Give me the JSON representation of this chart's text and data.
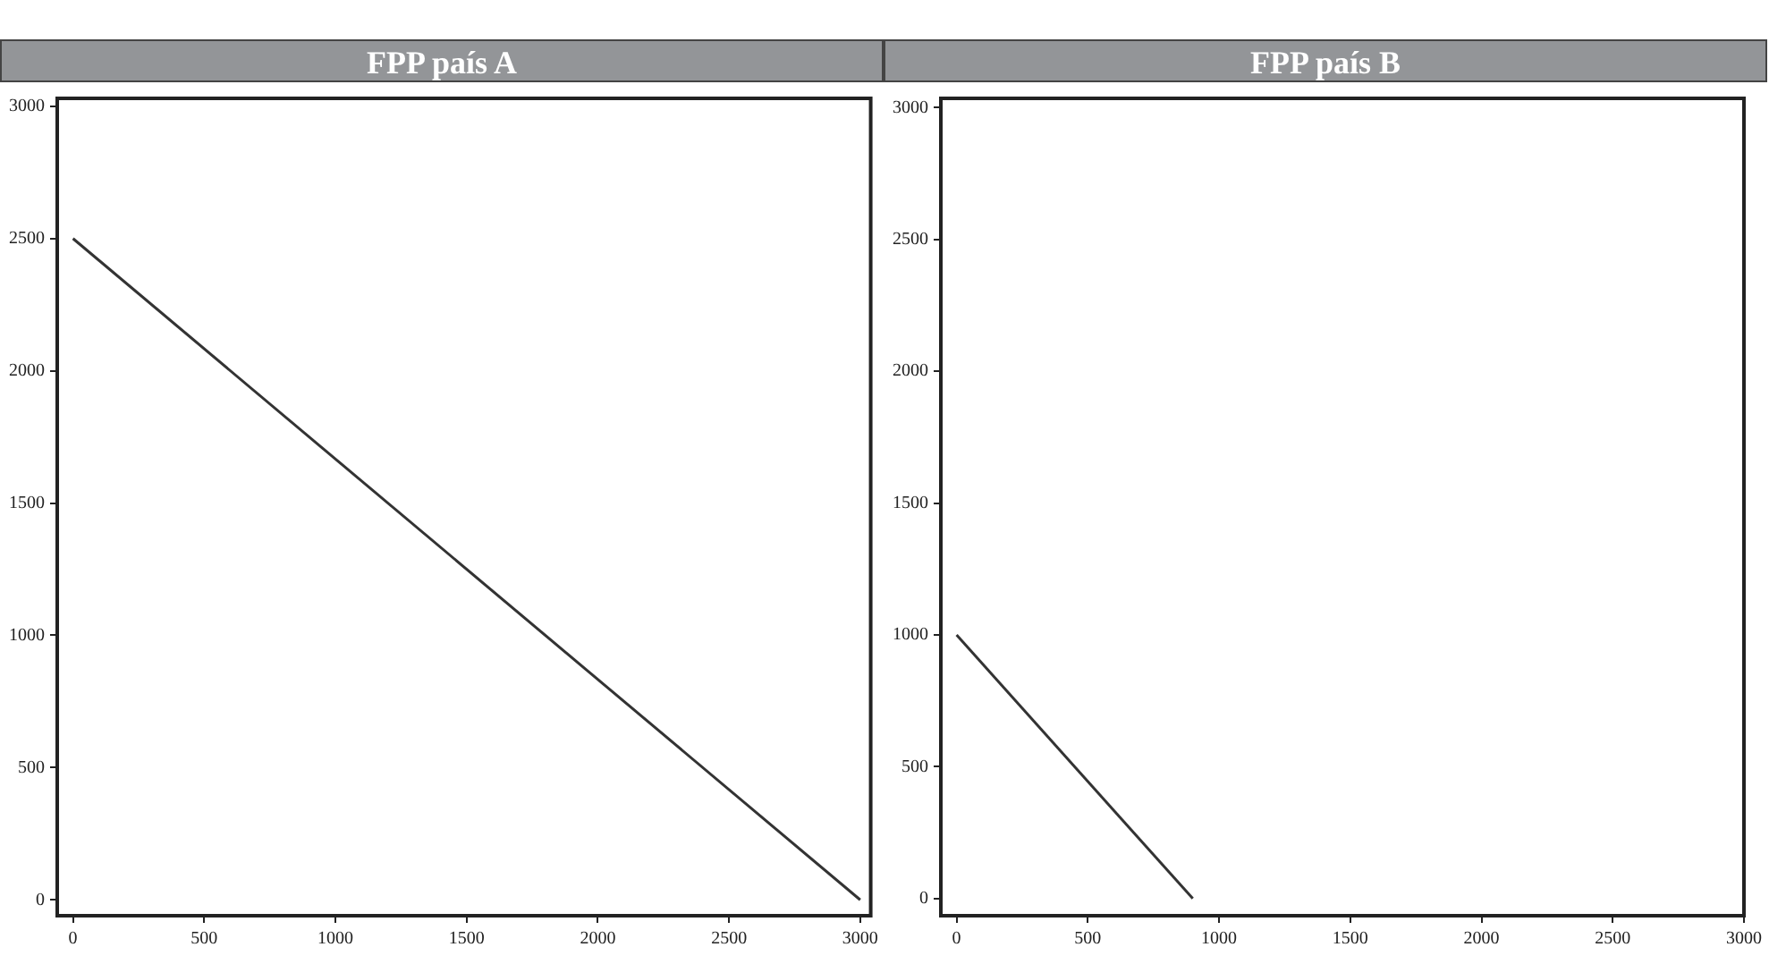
{
  "chart_data": [
    {
      "type": "line",
      "title": "FPP país A",
      "x": [
        0,
        3000
      ],
      "series": [
        {
          "color": "#333333",
          "values": [
            2500,
            0
          ]
        }
      ],
      "xlim": [
        -60,
        3040
      ],
      "ylim": [
        -60,
        3030
      ],
      "xticks": [
        0,
        500,
        1000,
        1500,
        2000,
        2500,
        3000
      ],
      "yticks": [
        0,
        500,
        1000,
        1500,
        2000,
        2500,
        3000
      ],
      "grid": false,
      "legend": false,
      "marker": "none",
      "line_style": "solid"
    },
    {
      "type": "line",
      "title": "FPP país B",
      "x": [
        0,
        900
      ],
      "series": [
        {
          "color": "#333333",
          "values": [
            1000,
            0
          ]
        }
      ],
      "xlim": [
        -60,
        3000
      ],
      "ylim": [
        -65,
        3035
      ],
      "xticks": [
        0,
        500,
        1000,
        1500,
        2000,
        2500,
        3000
      ],
      "yticks": [
        0,
        500,
        1000,
        1500,
        2000,
        2500,
        3000
      ],
      "grid": false,
      "legend": false,
      "marker": "none",
      "line_style": "solid"
    }
  ]
}
